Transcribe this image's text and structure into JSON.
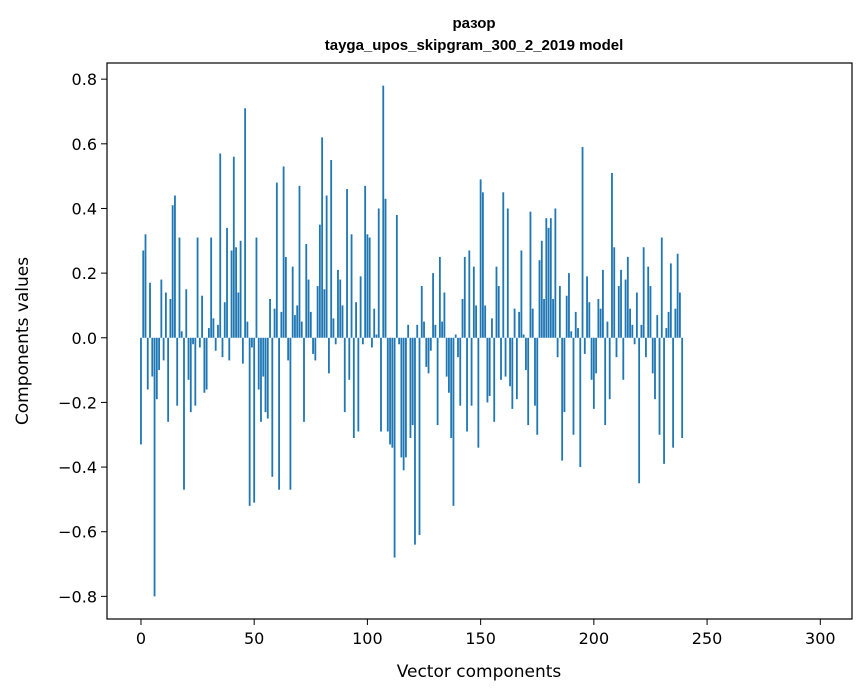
{
  "chart_data": {
    "type": "bar",
    "title_line1": "разор",
    "title_line2": "tayga_upos_skipgram_300_2_2019 model",
    "xlabel": "Vector components",
    "ylabel": "Components values",
    "xlim": [
      -15,
      314
    ],
    "ylim": [
      -0.87,
      0.85
    ],
    "xticks": [
      0,
      50,
      100,
      150,
      200,
      250,
      300
    ],
    "xtick_labels": [
      "0",
      "50",
      "100",
      "150",
      "200",
      "250",
      "300"
    ],
    "yticks": [
      -0.8,
      -0.6,
      -0.4,
      -0.2,
      0.0,
      0.2,
      0.4,
      0.6,
      0.8
    ],
    "ytick_labels": [
      "−0.8",
      "−0.6",
      "−0.4",
      "−0.2",
      "0.0",
      "0.2",
      "0.4",
      "0.6",
      "0.8"
    ],
    "bar_color": "#1f77b4",
    "values": [
      -0.33,
      0.27,
      0.32,
      -0.16,
      0.17,
      -0.12,
      -0.8,
      -0.19,
      -0.1,
      0.18,
      -0.07,
      0.14,
      -0.26,
      0.12,
      0.41,
      0.44,
      -0.21,
      0.31,
      0.02,
      -0.47,
      0.15,
      -0.13,
      -0.23,
      -0.02,
      -0.21,
      0.31,
      -0.03,
      0.13,
      -0.17,
      -0.16,
      0.03,
      0.31,
      0.06,
      -0.04,
      0.04,
      0.57,
      -0.06,
      0.11,
      0.34,
      -0.07,
      0.27,
      0.56,
      0.28,
      0.14,
      0.3,
      -0.08,
      0.71,
      0.05,
      -0.52,
      -0.03,
      -0.51,
      0.31,
      -0.16,
      -0.26,
      -0.12,
      -0.23,
      -0.25,
      0.12,
      -0.43,
      0.09,
      0.48,
      -0.47,
      0.08,
      0.53,
      0.25,
      -0.07,
      -0.47,
      0.22,
      0.07,
      0.1,
      0.47,
      0.05,
      -0.26,
      0.29,
      0.18,
      0.08,
      -0.05,
      -0.07,
      0.16,
      0.35,
      0.62,
      0.15,
      0.44,
      -0.11,
      0.55,
      0.06,
      -0.02,
      0.21,
      0.18,
      0.1,
      -0.23,
      0.46,
      -0.13,
      0.32,
      -0.31,
      0.11,
      -0.29,
      0.19,
      -0.02,
      0.47,
      0.32,
      0.31,
      -0.03,
      0.09,
      0.01,
      0.4,
      -0.29,
      0.78,
      0.43,
      -0.29,
      -0.33,
      -0.34,
      -0.68,
      0.38,
      -0.02,
      -0.37,
      -0.41,
      -0.37,
      0.04,
      -0.31,
      -0.27,
      -0.64,
      0.04,
      -0.61,
      0.16,
      0.05,
      -0.09,
      -0.11,
      -0.04,
      0.2,
      0.04,
      -0.27,
      0.25,
      0.05,
      0.14,
      -0.12,
      -0.17,
      -0.31,
      -0.52,
      0.01,
      -0.06,
      -0.21,
      0.12,
      0.25,
      -0.29,
      0.27,
      -0.21,
      0.22,
      0.1,
      -0.34,
      0.49,
      0.45,
      0.1,
      -0.2,
      -0.18,
      0.06,
      -0.26,
      0.22,
      0.16,
      -0.13,
      0.45,
      -0.12,
      0.4,
      -0.15,
      -0.22,
      0.09,
      -0.19,
      0.08,
      0.27,
      0.01,
      -0.1,
      -0.27,
      0.39,
      0.09,
      -0.21,
      -0.3,
      0.24,
      0.3,
      0.12,
      0.37,
      0.34,
      0.37,
      0.12,
      0.4,
      -0.06,
      0.16,
      -0.38,
      -0.23,
      0.13,
      0.2,
      0.02,
      -0.3,
      0.08,
      0.03,
      -0.4,
      0.59,
      -0.05,
      0.19,
      0.11,
      -0.13,
      -0.22,
      -0.11,
      0.12,
      0.09,
      0.21,
      -0.27,
      0.05,
      -0.19,
      0.51,
      0.28,
      -0.06,
      0.16,
      0.21,
      -0.13,
      0.18,
      0.25,
      0.09,
      0.04,
      -0.02,
      0.14,
      -0.45,
      0.04,
      0.28,
      -0.06,
      0.22,
      0.16,
      -0.11,
      -0.19,
      0.07,
      -0.3,
      0.31,
      -0.39,
      0.03,
      0.08,
      0.23,
      -0.34,
      0.09,
      0.26,
      0.14,
      -0.31
    ]
  }
}
